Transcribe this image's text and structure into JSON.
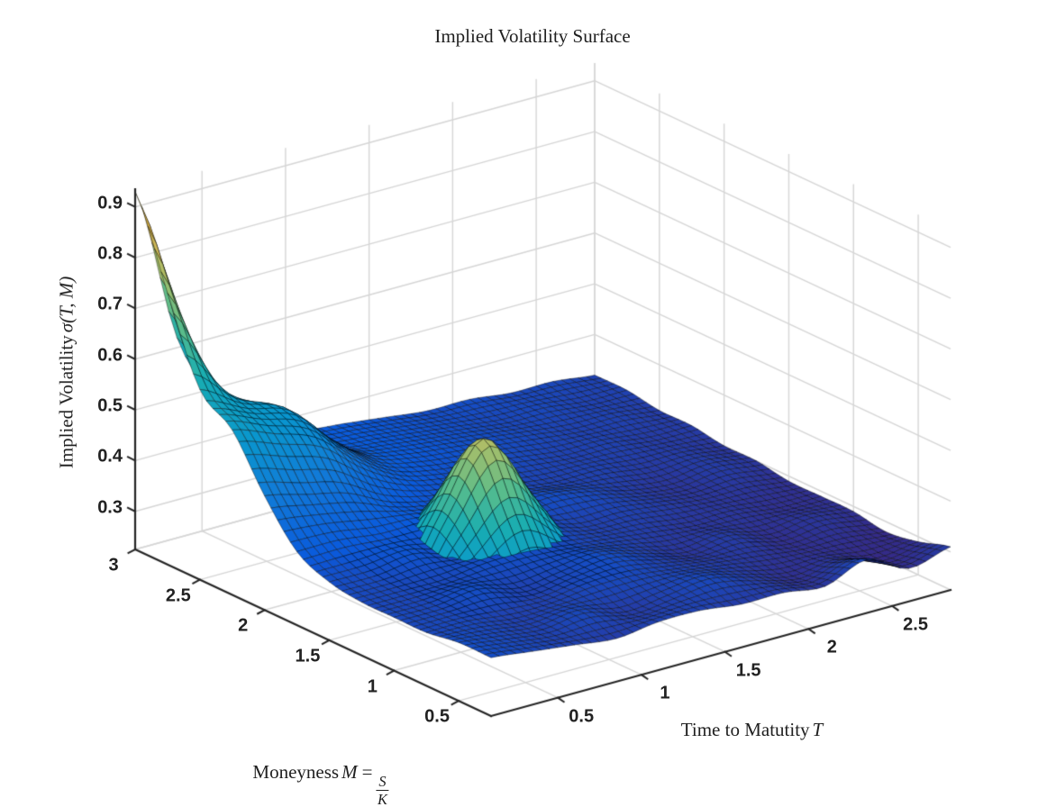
{
  "title": {
    "text": "Implied Volatility Surface"
  },
  "axes": {
    "x": {
      "label": "Time to Matutity",
      "label_math": "T",
      "tick_labels": [
        "0.5",
        "1",
        "1.5",
        "2",
        "2.5"
      ],
      "tick_values": [
        0.5,
        1,
        1.5,
        2,
        2.5
      ]
    },
    "y": {
      "label": "Moneyness",
      "label_math": "M",
      "eq": "=",
      "frac_num": "S",
      "frac_den": "K",
      "tick_labels": [
        "0.5",
        "1",
        "1.5",
        "2",
        "2.5",
        "3"
      ],
      "tick_values": [
        0.5,
        1,
        1.5,
        2,
        2.5,
        3
      ]
    },
    "z": {
      "label": "Implied Volatility",
      "label_math": "σ(T, M)",
      "tick_labels": [
        "0.3",
        "0.4",
        "0.5",
        "0.6",
        "0.7",
        "0.8",
        "0.9"
      ],
      "tick_values": [
        0.3,
        0.4,
        0.5,
        0.6,
        0.7,
        0.8,
        0.9
      ]
    }
  },
  "chart_data": {
    "type": "surface",
    "title": "Implied Volatility Surface",
    "xlabel": "Time to Matutity T",
    "ylabel": "Moneyness M = S/K",
    "zlabel": "Implied Volatility σ(T,M)",
    "x_name": "T",
    "y_name": "M",
    "z_name": "sigma",
    "grid": true,
    "legend": false,
    "colormap": "parula",
    "x_range": [
      0.1,
      2.85
    ],
    "y_range": [
      0.25,
      3.0
    ],
    "z_range": [
      0.225,
      0.935
    ],
    "color_range": [
      0.28,
      0.95
    ],
    "x": [
      0.1,
      0.35,
      0.6,
      0.85,
      1.1,
      1.35,
      1.6,
      1.85,
      2.1,
      2.35,
      2.6,
      2.85
    ],
    "y": [
      0.25,
      0.5,
      0.75,
      1.0,
      1.25,
      1.5,
      1.75,
      2.0,
      2.25,
      2.5,
      2.75,
      3.0
    ],
    "z": [
      [
        0.34,
        0.33,
        0.32,
        0.31,
        0.32,
        0.32,
        0.31,
        0.31,
        0.3,
        0.33,
        0.29,
        0.31
      ],
      [
        0.34,
        0.33,
        0.32,
        0.33,
        0.31,
        0.32,
        0.33,
        0.31,
        0.29,
        0.3,
        0.28,
        0.29
      ],
      [
        0.33,
        0.33,
        0.32,
        0.32,
        0.33,
        0.33,
        0.32,
        0.31,
        0.3,
        0.29,
        0.29,
        0.28
      ],
      [
        0.33,
        0.33,
        0.34,
        0.32,
        0.33,
        0.34,
        0.32,
        0.3,
        0.31,
        0.29,
        0.3,
        0.29
      ],
      [
        0.33,
        0.33,
        0.33,
        0.34,
        0.34,
        0.33,
        0.32,
        0.31,
        0.3,
        0.3,
        0.29,
        0.29
      ],
      [
        0.34,
        0.34,
        0.35,
        0.33,
        0.35,
        0.34,
        0.32,
        0.32,
        0.31,
        0.3,
        0.3,
        0.29
      ],
      [
        0.37,
        0.37,
        0.36,
        0.36,
        0.35,
        0.33,
        0.34,
        0.33,
        0.31,
        0.3,
        0.31,
        0.3
      ],
      [
        0.45,
        0.43,
        0.41,
        0.37,
        0.35,
        0.34,
        0.33,
        0.32,
        0.32,
        0.31,
        0.31,
        0.3
      ],
      [
        0.55,
        0.52,
        0.49,
        0.42,
        0.37,
        0.35,
        0.34,
        0.33,
        0.32,
        0.32,
        0.31,
        0.31
      ],
      [
        0.6,
        0.55,
        0.52,
        0.44,
        0.38,
        0.36,
        0.35,
        0.34,
        0.33,
        0.32,
        0.32,
        0.31
      ],
      [
        0.76,
        0.57,
        0.48,
        0.41,
        0.37,
        0.36,
        0.35,
        0.34,
        0.33,
        0.33,
        0.32,
        0.32
      ],
      [
        0.93,
        0.62,
        0.47,
        0.4,
        0.37,
        0.36,
        0.35,
        0.34,
        0.34,
        0.33,
        0.33,
        0.32
      ]
    ],
    "smile_spike_overlay": {
      "color_range": [
        0.13,
        0.63
      ],
      "x": [
        0.6,
        0.85,
        1.1,
        1.35,
        1.6
      ],
      "y": [
        1.1,
        1.35,
        1.6,
        1.85,
        2.1
      ],
      "z": [
        [
          0.27,
          0.27,
          0.28,
          0.27,
          0.27
        ],
        [
          0.27,
          0.34,
          0.4,
          0.34,
          0.27
        ],
        [
          0.27,
          0.4,
          0.52,
          0.4,
          0.27
        ],
        [
          0.27,
          0.34,
          0.4,
          0.34,
          0.27
        ],
        [
          0.27,
          0.27,
          0.28,
          0.27,
          0.27
        ]
      ]
    },
    "colormap_stops": [
      [
        0.0,
        "#352a87"
      ],
      [
        0.12,
        "#0a5adc"
      ],
      [
        0.25,
        "#117bd8"
      ],
      [
        0.37,
        "#0996ce"
      ],
      [
        0.5,
        "#18adb2"
      ],
      [
        0.62,
        "#57bc8c"
      ],
      [
        0.75,
        "#a5be6b"
      ],
      [
        0.87,
        "#e5b850"
      ],
      [
        1.0,
        "#f9fb14"
      ]
    ]
  },
  "style": {
    "background": "#ffffff",
    "grid_color": "#d6d6d6",
    "axis_color": "#242424",
    "tick_text_color": "#222222",
    "label_text_color": "#1f1f1f",
    "mesh_edge": "rgba(0,0,0,0.8)"
  }
}
